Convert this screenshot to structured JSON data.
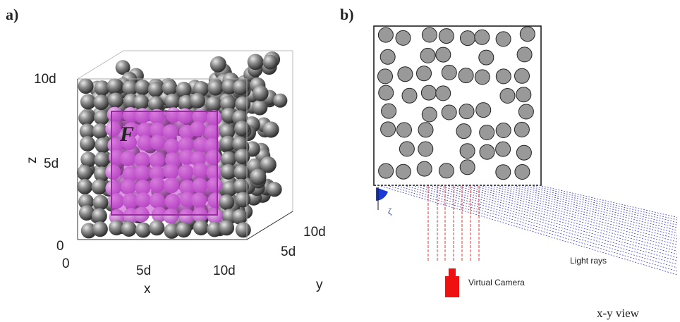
{
  "panel_a": {
    "label": "a)",
    "force_label": "F",
    "axes": {
      "x": {
        "label": "x",
        "ticks": [
          "0",
          "5d",
          "10d"
        ]
      },
      "y": {
        "label": "y",
        "ticks": [
          "5d",
          "10d"
        ]
      },
      "z": {
        "label": "z",
        "ticks": [
          "0",
          "5d",
          "10d"
        ]
      }
    }
  },
  "panel_b": {
    "label": "b)",
    "angle_label": "ζ",
    "rays_label": "Light rays",
    "camera_label": "Virtual Camera",
    "view_label": "x-y view"
  }
}
